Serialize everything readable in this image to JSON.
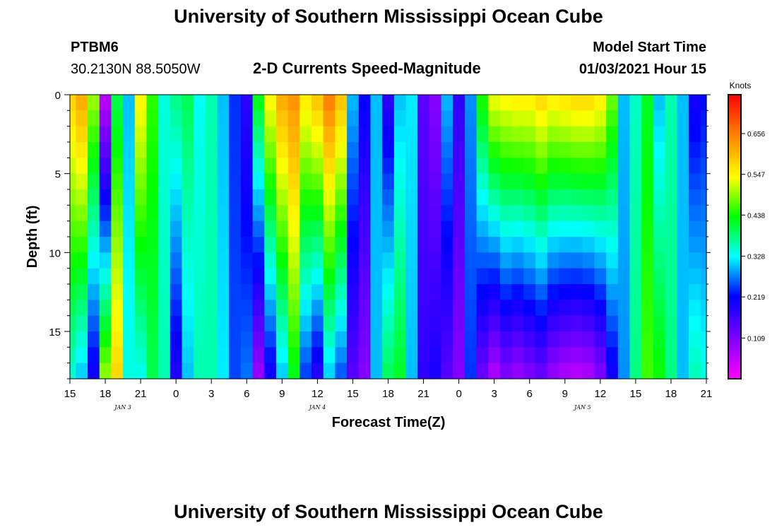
{
  "page": {
    "title_top": "University of Southern Mississippi Ocean Cube",
    "title_bottom": "University of Southern Mississippi Ocean Cube",
    "station_id": "PTBM6",
    "station_coords": "30.2130N 88.5050W",
    "plot_title": "2-D Currents Speed-Magnitude",
    "model_start_label": "Model Start Time",
    "model_start_value": "01/03/2021 Hour 15"
  },
  "chart_data": {
    "type": "heatmap",
    "title": "2-D Currents Speed-Magnitude",
    "xlabel": "Forecast Time(Z)",
    "ylabel": "Depth (ft)",
    "x_tick_labels": [
      "15",
      "18",
      "21",
      "0",
      "3",
      "6",
      "9",
      "12",
      "15",
      "18",
      "21",
      "0",
      "3",
      "6",
      "9",
      "12",
      "15",
      "18",
      "21"
    ],
    "x_range_hours": [
      0,
      54
    ],
    "day_labels": [
      {
        "text": "JAN 3",
        "hour": 4.5
      },
      {
        "text": "JAN 4",
        "hour": 21
      },
      {
        "text": "JAN 5",
        "hour": 43.5
      }
    ],
    "y_ticks": [
      0,
      5,
      10,
      15
    ],
    "ylim": [
      0,
      18
    ],
    "y_inverted": true,
    "colorbar": {
      "unit_label": "Knots",
      "tick_values": [
        0.109,
        0.219,
        0.328,
        0.438,
        0.547,
        0.656
      ],
      "range": [
        0.0,
        0.76
      ]
    },
    "speed_profiles_knots": [
      {
        "hour": 0,
        "top": 0.58,
        "bottom": 0.34
      },
      {
        "hour": 1,
        "top": 0.62,
        "bottom": 0.3
      },
      {
        "hour": 2,
        "top": 0.5,
        "bottom": 0.2
      },
      {
        "hour": 3,
        "top": 0.05,
        "bottom": 0.5
      },
      {
        "hour": 4,
        "top": 0.4,
        "bottom": 0.58
      },
      {
        "hour": 5,
        "top": 0.3,
        "bottom": 0.34
      },
      {
        "hour": 6,
        "top": 0.55,
        "bottom": 0.33
      },
      {
        "hour": 7,
        "top": 0.45,
        "bottom": 0.4
      },
      {
        "hour": 8,
        "top": 0.34,
        "bottom": 0.36
      },
      {
        "hour": 9,
        "top": 0.38,
        "bottom": 0.19
      },
      {
        "hour": 10,
        "top": 0.4,
        "bottom": 0.3
      },
      {
        "hour": 11,
        "top": 0.33,
        "bottom": 0.36
      },
      {
        "hour": 12,
        "top": 0.36,
        "bottom": 0.36
      },
      {
        "hour": 13,
        "top": 0.3,
        "bottom": 0.32
      },
      {
        "hour": 14,
        "top": 0.24,
        "bottom": 0.25
      },
      {
        "hour": 15,
        "top": 0.18,
        "bottom": 0.27
      },
      {
        "hour": 16,
        "top": 0.43,
        "bottom": 0.08
      },
      {
        "hour": 17,
        "top": 0.55,
        "bottom": 0.2
      },
      {
        "hour": 18,
        "top": 0.62,
        "bottom": 0.3
      },
      {
        "hour": 19,
        "top": 0.64,
        "bottom": 0.42
      },
      {
        "hour": 20,
        "top": 0.56,
        "bottom": 0.24
      },
      {
        "hour": 21,
        "top": 0.6,
        "bottom": 0.18
      },
      {
        "hour": 22,
        "top": 0.66,
        "bottom": 0.3
      },
      {
        "hour": 23,
        "top": 0.6,
        "bottom": 0.25
      },
      {
        "hour": 24,
        "top": 0.3,
        "bottom": 0.14
      },
      {
        "hour": 25,
        "top": 0.22,
        "bottom": 0.1
      },
      {
        "hour": 26,
        "top": 0.3,
        "bottom": 0.3
      },
      {
        "hour": 27,
        "top": 0.18,
        "bottom": 0.4
      },
      {
        "hour": 28,
        "top": 0.3,
        "bottom": 0.42
      },
      {
        "hour": 29,
        "top": 0.32,
        "bottom": 0.3
      },
      {
        "hour": 30,
        "top": 0.14,
        "bottom": 0.18
      },
      {
        "hour": 31,
        "top": 0.1,
        "bottom": 0.2
      },
      {
        "hour": 32,
        "top": 0.3,
        "bottom": 0.14
      },
      {
        "hour": 33,
        "top": 0.18,
        "bottom": 0.1
      },
      {
        "hour": 34,
        "top": 0.28,
        "bottom": 0.24
      },
      {
        "hour": 35,
        "top": 0.45,
        "bottom": 0.12
      },
      {
        "hour": 36,
        "top": 0.54,
        "bottom": 0.06
      },
      {
        "hour": 37,
        "top": 0.55,
        "bottom": 0.1
      },
      {
        "hour": 38,
        "top": 0.56,
        "bottom": 0.08
      },
      {
        "hour": 39,
        "top": 0.56,
        "bottom": 0.1
      },
      {
        "hour": 40,
        "top": 0.58,
        "bottom": 0.12
      },
      {
        "hour": 41,
        "top": 0.56,
        "bottom": 0.08
      },
      {
        "hour": 42,
        "top": 0.57,
        "bottom": 0.06
      },
      {
        "hour": 43,
        "top": 0.58,
        "bottom": 0.05
      },
      {
        "hour": 44,
        "top": 0.58,
        "bottom": 0.06
      },
      {
        "hour": 45,
        "top": 0.56,
        "bottom": 0.1
      },
      {
        "hour": 46,
        "top": 0.48,
        "bottom": 0.2
      },
      {
        "hour": 47,
        "top": 0.3,
        "bottom": 0.28
      },
      {
        "hour": 48,
        "top": 0.35,
        "bottom": 0.38
      },
      {
        "hour": 49,
        "top": 0.42,
        "bottom": 0.46
      },
      {
        "hour": 50,
        "top": 0.3,
        "bottom": 0.44
      },
      {
        "hour": 51,
        "top": 0.36,
        "bottom": 0.38
      },
      {
        "hour": 52,
        "top": 0.3,
        "bottom": 0.3
      },
      {
        "hour": 53,
        "top": 0.2,
        "bottom": 0.36
      },
      {
        "hour": 54,
        "top": 0.22,
        "bottom": 0.34
      }
    ]
  }
}
